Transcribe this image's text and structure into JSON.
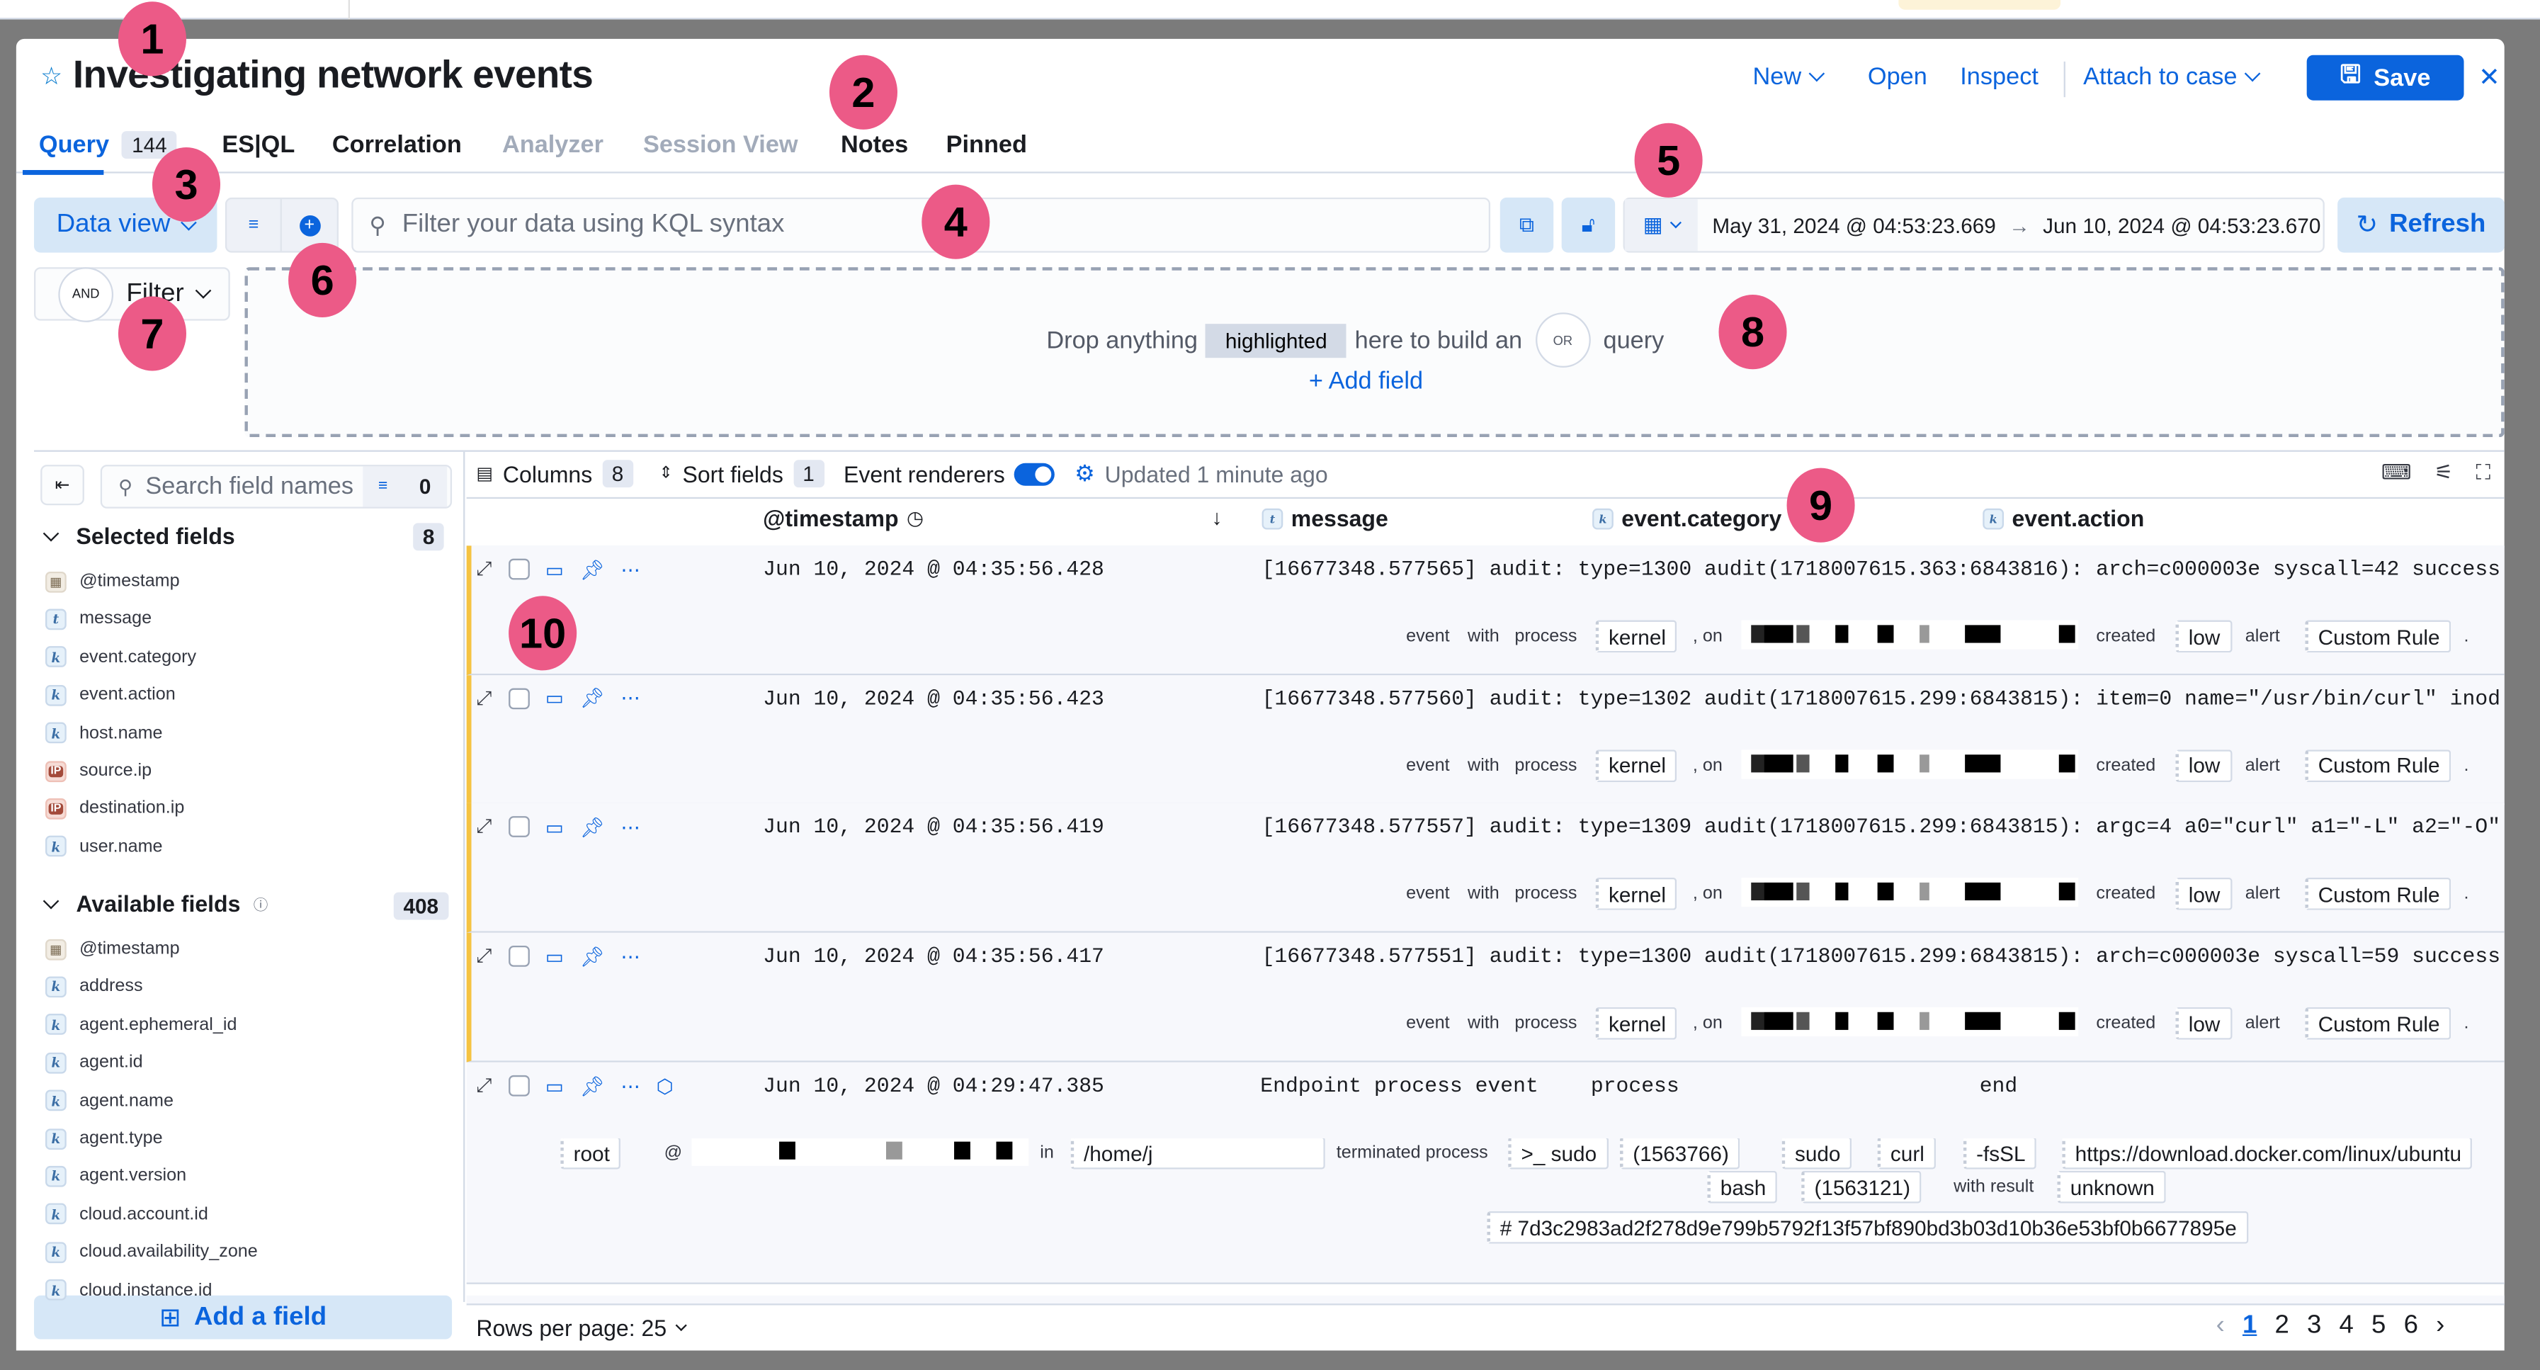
{
  "window": {
    "title": "Investigating network events"
  },
  "header": {
    "actions": [
      {
        "label": "New",
        "dropdown": true
      },
      {
        "label": "Open"
      },
      {
        "label": "Inspect"
      },
      {
        "label": "Attach to case",
        "dropdown": true
      }
    ],
    "save_label": "Save",
    "close_icon": "close-icon"
  },
  "tabs": [
    {
      "label": "Query",
      "count": "144",
      "state": "active"
    },
    {
      "label": "ES|QL",
      "state": "normal"
    },
    {
      "label": "Correlation",
      "state": "normal"
    },
    {
      "label": "Analyzer",
      "state": "disabled"
    },
    {
      "label": "Session View",
      "state": "disabled"
    },
    {
      "label": "Notes",
      "state": "normal"
    },
    {
      "label": "Pinned",
      "state": "normal"
    }
  ],
  "querybar": {
    "data_view_label": "Data view",
    "search_placeholder": "Filter your data using KQL syntax",
    "date_start": "May 31, 2024 @ 04:53:23.669",
    "date_end": "Jun 10, 2024 @ 04:53:23.670",
    "refresh_label": "Refresh"
  },
  "filter": {
    "and_label": "AND",
    "filter_label": "Filter"
  },
  "dropzone": {
    "text1": "Drop anything",
    "highlight": "highlighted",
    "text2": "here to build an",
    "or_label": "OR",
    "text3": "query",
    "add_field": "+ Add field"
  },
  "sidebar": {
    "search_placeholder": "Search field names",
    "filter_count": "0",
    "selected_title": "Selected fields",
    "selected_count": "8",
    "selected": [
      {
        "type": "date",
        "name": "@timestamp"
      },
      {
        "type": "t",
        "name": "message"
      },
      {
        "type": "k",
        "name": "event.category"
      },
      {
        "type": "k",
        "name": "event.action"
      },
      {
        "type": "k",
        "name": "host.name"
      },
      {
        "type": "ip",
        "name": "source.ip"
      },
      {
        "type": "ip",
        "name": "destination.ip"
      },
      {
        "type": "k",
        "name": "user.name"
      }
    ],
    "available_title": "Available fields",
    "available_count": "408",
    "available": [
      {
        "type": "date",
        "name": "@timestamp"
      },
      {
        "type": "k",
        "name": "address"
      },
      {
        "type": "k",
        "name": "agent.ephemeral_id"
      },
      {
        "type": "k",
        "name": "agent.id"
      },
      {
        "type": "k",
        "name": "agent.name"
      },
      {
        "type": "k",
        "name": "agent.type"
      },
      {
        "type": "k",
        "name": "agent.version"
      },
      {
        "type": "k",
        "name": "cloud.account.id"
      },
      {
        "type": "k",
        "name": "cloud.availability_zone"
      },
      {
        "type": "k",
        "name": "cloud.instance.id"
      }
    ],
    "add_field_label": "Add a field"
  },
  "grid": {
    "toolbar": {
      "columns_label": "Columns",
      "columns_count": "8",
      "sort_label": "Sort fields",
      "sort_count": "1",
      "renderers_label": "Event renderers",
      "renderers_on": true,
      "updated": "Updated 1 minute ago"
    },
    "columns": [
      {
        "label": "@timestamp",
        "type": ""
      },
      {
        "label": "message",
        "type": "t"
      },
      {
        "label": "event.category",
        "type": "k"
      },
      {
        "label": "event.action",
        "type": "k"
      }
    ],
    "rows": [
      {
        "timestamp": "Jun 10, 2024 @ 04:35:56.428",
        "message": "[16677348.577565] audit: type=1300 audit(1718007615.363:6843816): arch=c000003e syscall=42 success"
      },
      {
        "timestamp": "Jun 10, 2024 @ 04:35:56.423",
        "message": "[16677348.577560] audit: type=1302 audit(1718007615.299:6843815): item=0 name=\"/usr/bin/curl\" inod"
      },
      {
        "timestamp": "Jun 10, 2024 @ 04:35:56.419",
        "message": "[16677348.577557] audit: type=1309 audit(1718007615.299:6843815): argc=4 a0=\"curl\" a1=\"-L\" a2=\"-O\""
      },
      {
        "timestamp": "Jun 10, 2024 @ 04:35:56.417",
        "message": "[16677348.577551] audit: type=1300 audit(1718007615.299:6843815): arch=c000003e syscall=59 success"
      }
    ],
    "renderer": {
      "w1": "event",
      "w2": "with",
      "w3": "process",
      "process": "kernel",
      "on": ", on",
      "created": "created",
      "severity": "low",
      "alert": "alert",
      "rule": "Custom Rule",
      "dot": "."
    },
    "endpoint_row": {
      "timestamp": "Jun 10, 2024 @ 04:29:47.385",
      "message": "Endpoint process event",
      "category": "process",
      "action": "end",
      "user": "root",
      "at": "@",
      "in": "in",
      "dir": "/home/j",
      "terminated": "terminated process",
      "proc": ">_ sudo",
      "pid": "(1563766)",
      "args": [
        "sudo",
        "curl",
        "-fsSL",
        "https://download.docker.com/linux/ubuntu"
      ],
      "parent": "bash",
      "ppid": "(1563121)",
      "with_result": "with result",
      "result": "unknown",
      "hash": "# 7d3c2983ad2f278d9e799b5792f13f57bf890bd3b03d10b36e53bf0b6677895e"
    }
  },
  "footer": {
    "rows_per_page": "Rows per page: 25",
    "pages": [
      "1",
      "2",
      "3",
      "4",
      "5",
      "6"
    ],
    "current_page": "1"
  },
  "annotations": [
    "1",
    "2",
    "3",
    "4",
    "5",
    "6",
    "7",
    "8",
    "9",
    "10"
  ],
  "colors": {
    "accent": "#0b64dd",
    "annotation": "#ec5a87",
    "row_marker": "#f5c342"
  }
}
